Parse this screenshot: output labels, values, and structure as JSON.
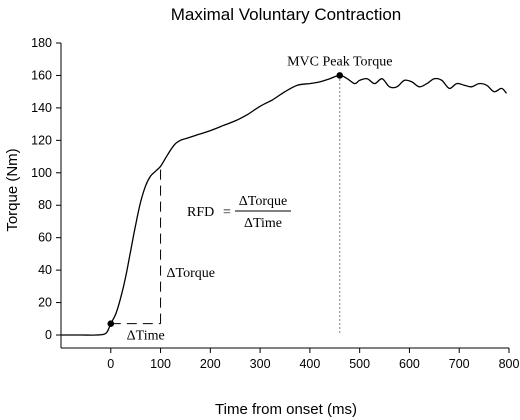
{
  "chart_data": {
    "type": "line",
    "title": "Maximal Voluntary Contraction",
    "xlabel": "Time from onset (ms)",
    "ylabel": "Torque (Nm)",
    "xlim": [
      -100,
      800
    ],
    "ylim": [
      -8,
      180
    ],
    "x_ticks": [
      0,
      100,
      200,
      300,
      400,
      500,
      600,
      700,
      800
    ],
    "y_ticks": [
      0,
      20,
      40,
      60,
      80,
      100,
      120,
      140,
      160,
      180
    ],
    "grid": false,
    "legend": "none",
    "series": [
      {
        "x": [
          -100,
          -60,
          -30,
          -10,
          0,
          10,
          20,
          30,
          40,
          50,
          60,
          70,
          80,
          90,
          100,
          110,
          120,
          130,
          140,
          150,
          160,
          180,
          200,
          225,
          250,
          275,
          300,
          325,
          350,
          375,
          400,
          420,
          440,
          460,
          475,
          490,
          500,
          515,
          530,
          545,
          560,
          575,
          590,
          605,
          620,
          635,
          650,
          665,
          680,
          695,
          710,
          725,
          740,
          755,
          770,
          785,
          795
        ],
        "y": [
          0,
          0,
          0,
          1,
          7,
          13,
          23,
          36,
          52,
          68,
          82,
          92,
          98,
          101,
          104,
          109,
          114,
          118,
          120,
          121,
          122,
          124,
          126,
          129,
          132,
          136,
          141,
          145,
          150,
          154,
          155,
          156,
          158,
          160,
          158,
          155,
          157,
          158,
          155,
          158,
          153,
          153,
          157,
          156,
          153,
          155,
          158,
          157,
          152,
          155,
          154,
          153,
          155,
          154,
          150,
          152,
          149
        ]
      }
    ],
    "points": [
      {
        "x": 0,
        "y": 7
      },
      {
        "x": 460,
        "y": 160
      }
    ],
    "annotations": {
      "peak": "MVC Peak Torque",
      "delta_torque": "ΔTorque",
      "delta_time": "ΔTime",
      "rfd_lhs": "RFD",
      "rfd_equals": "=",
      "rfd_numerator": "ΔTorque",
      "rfd_denominator": "ΔTime"
    },
    "guides": {
      "rise_start": {
        "x": 0,
        "y": 7
      },
      "rise_end": {
        "x": 100,
        "y": 104
      },
      "peak_x": 460
    },
    "color": "#000000"
  }
}
